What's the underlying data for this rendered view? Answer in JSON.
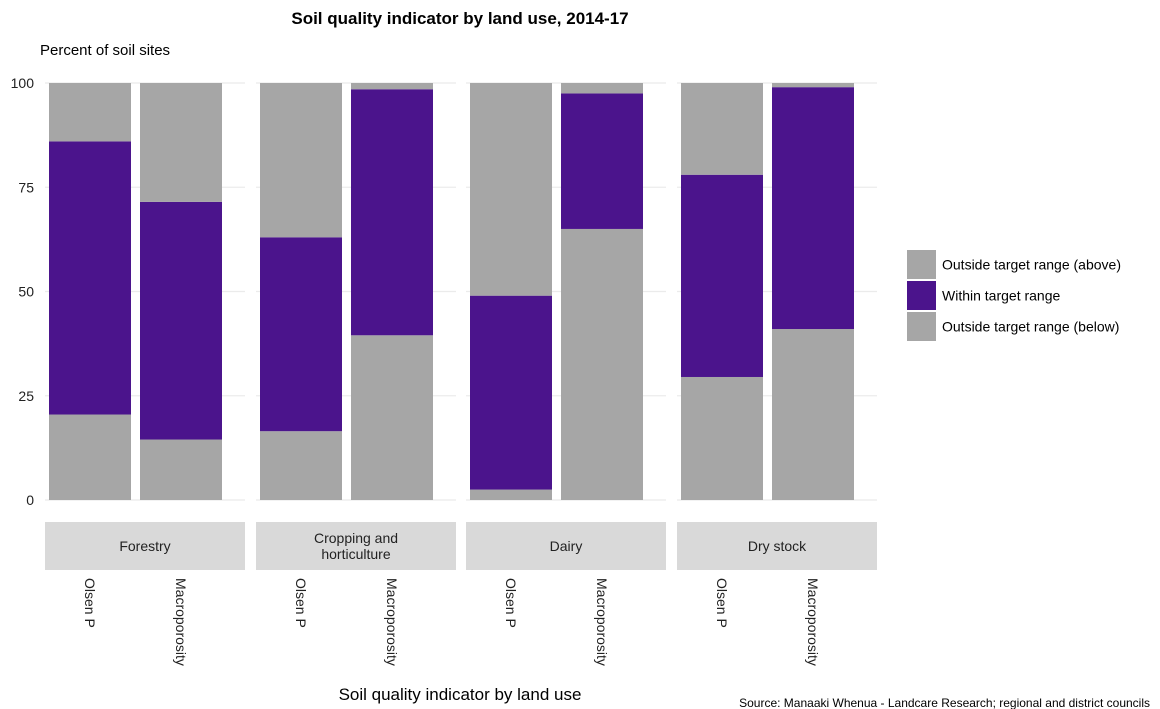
{
  "chart_data": {
    "type": "bar",
    "stacked": true,
    "title": "Soil quality indicator by land use, 2014-17",
    "ylabel": "Percent of soil sites",
    "xlabel": "Soil quality indicator by land use",
    "source": "Source: Manaaki Whenua - Landcare Research; regional and district councils",
    "ylim": [
      0,
      100
    ],
    "yticks": [
      "0",
      "25",
      "50",
      "75",
      "100"
    ],
    "facets": [
      {
        "name": "Forestry",
        "bars": [
          {
            "category": "Olsen P",
            "below": 20.5,
            "within": 65.5,
            "above": 14
          },
          {
            "category": "Macroporosity",
            "below": 14.5,
            "within": 57,
            "above": 28.5
          }
        ]
      },
      {
        "name": "Cropping and horticulture",
        "name_lines": [
          "Cropping and",
          "horticulture"
        ],
        "bars": [
          {
            "category": "Olsen P",
            "below": 16.5,
            "within": 46.5,
            "above": 37
          },
          {
            "category": "Macroporosity",
            "below": 39.5,
            "within": 59,
            "above": 1.5
          }
        ]
      },
      {
        "name": "Dairy",
        "bars": [
          {
            "category": "Olsen P",
            "below": 2.5,
            "within": 46.5,
            "above": 51
          },
          {
            "category": "Macroporosity",
            "below": 65,
            "within": 32.5,
            "above": 2.5
          }
        ]
      },
      {
        "name": "Dry stock",
        "bars": [
          {
            "category": "Olsen P",
            "below": 29.5,
            "within": 48.5,
            "above": 22
          },
          {
            "category": "Macroporosity",
            "below": 41,
            "within": 58,
            "above": 1
          }
        ]
      }
    ],
    "legend": {
      "position": "right",
      "entries": [
        {
          "key": "above",
          "label": "Outside target range (above)",
          "color": "#a6a6a6"
        },
        {
          "key": "within",
          "label": "Within target range",
          "color": "#4b148c"
        },
        {
          "key": "below",
          "label": "Outside target range (below)",
          "color": "#a6a6a6"
        }
      ]
    },
    "colors": {
      "grid": "#ebebeb",
      "facet_strip": "#d9d9d9"
    }
  }
}
